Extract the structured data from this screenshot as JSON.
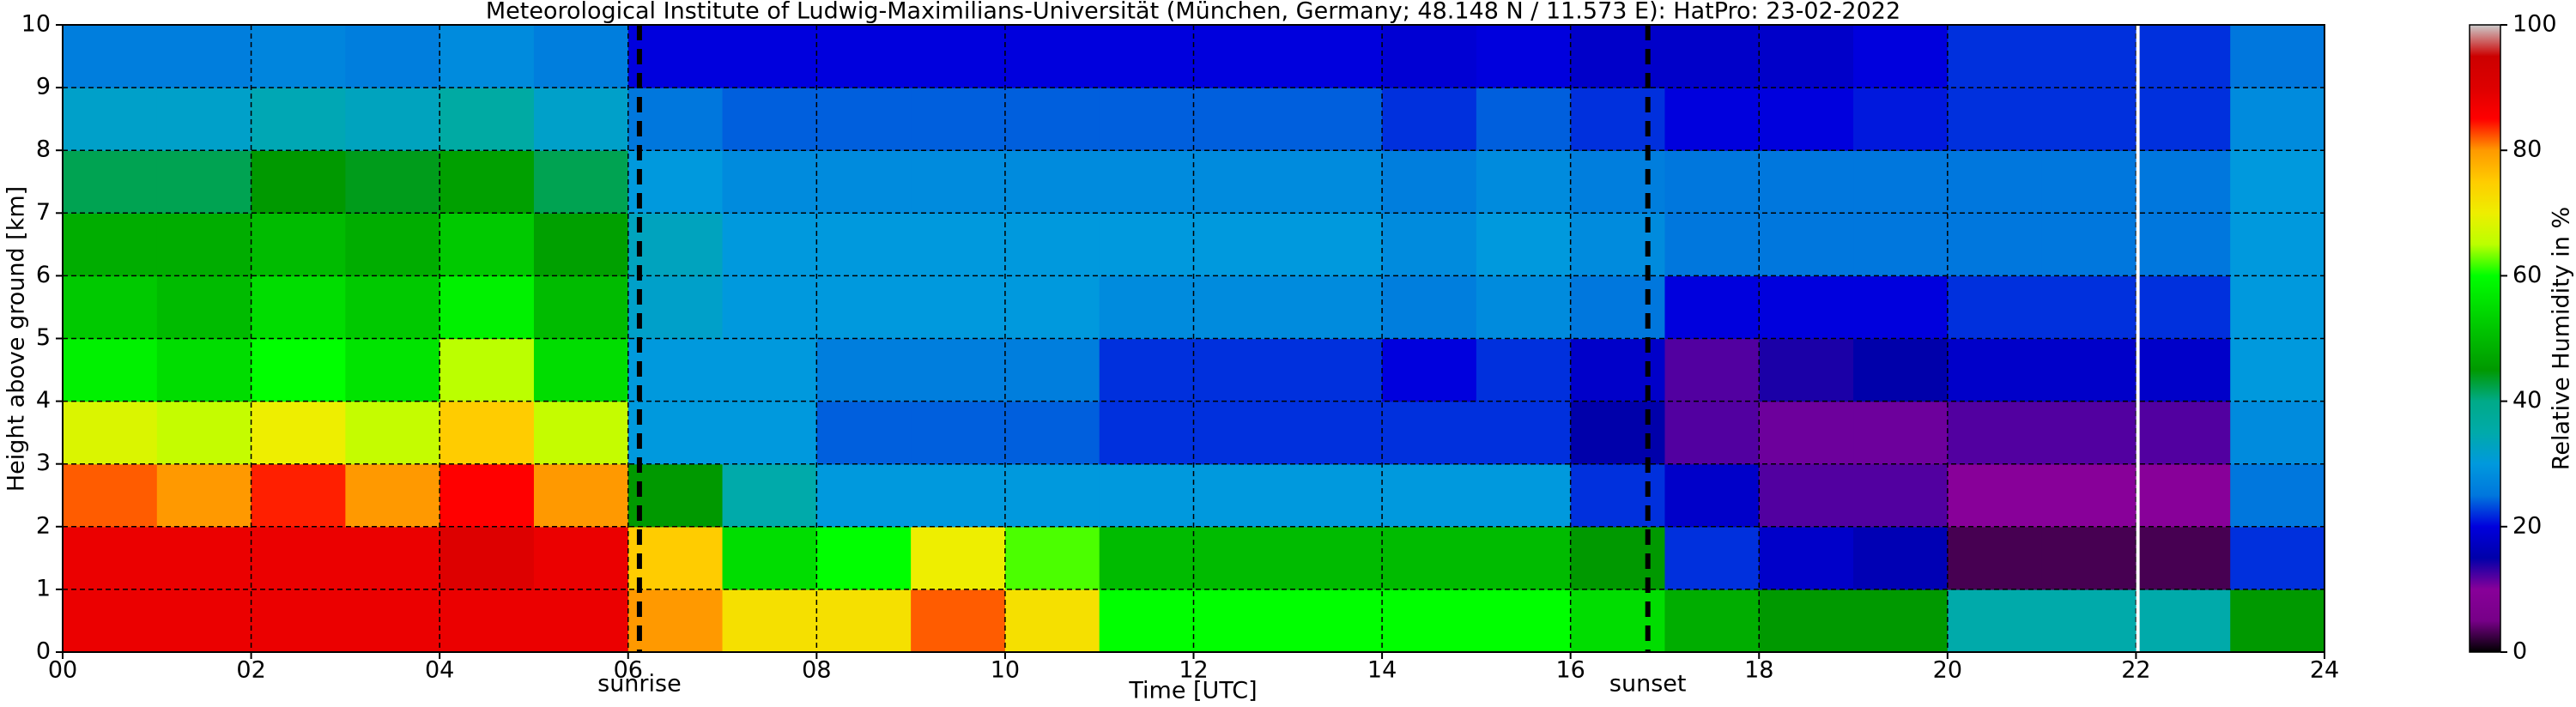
{
  "chart_data": {
    "type": "heatmap",
    "title": "Meteorological Institute of Ludwig-Maximilians-Universität (München, Germany; 48.148 N / 11.573 E):    HatPro: 23-02-2022",
    "x_label": "Time [UTC]",
    "y_label": "Height above ground [km]",
    "xlim": [
      0,
      24
    ],
    "ylim": [
      0,
      10
    ],
    "xticks": [
      {
        "value": 0,
        "label": "00"
      },
      {
        "value": 2,
        "label": "02"
      },
      {
        "value": 4,
        "label": "04"
      },
      {
        "value": 6,
        "label": "06"
      },
      {
        "value": 8,
        "label": "08"
      },
      {
        "value": 10,
        "label": "10"
      },
      {
        "value": 12,
        "label": "12"
      },
      {
        "value": 14,
        "label": "14"
      },
      {
        "value": 16,
        "label": "16"
      },
      {
        "value": 18,
        "label": "18"
      },
      {
        "value": 20,
        "label": "20"
      },
      {
        "value": 22,
        "label": "22"
      },
      {
        "value": 24,
        "label": "24"
      }
    ],
    "yticks": [
      0,
      1,
      2,
      3,
      4,
      5,
      6,
      7,
      8,
      9,
      10
    ],
    "grid": true,
    "x": [
      0.5,
      1.5,
      2.5,
      3.5,
      4.5,
      5.5,
      6.5,
      7.5,
      8.5,
      9.5,
      10.5,
      11.5,
      12.5,
      13.5,
      14.5,
      15.5,
      16.5,
      17.5,
      18.5,
      19.5,
      20.5,
      21.5,
      22.5,
      23.5
    ],
    "y": [
      0.5,
      1.5,
      2.5,
      3.5,
      4.5,
      5.5,
      6.5,
      7.5,
      8.5,
      9.5
    ],
    "values": [
      [
        88,
        88,
        88,
        88,
        88,
        88,
        80,
        72,
        72,
        82,
        72,
        60,
        60,
        60,
        60,
        60,
        55,
        48,
        45,
        45,
        35,
        35,
        35,
        45
      ],
      [
        88,
        88,
        88,
        88,
        90,
        88,
        75,
        55,
        60,
        70,
        62,
        50,
        50,
        50,
        50,
        50,
        45,
        22,
        18,
        16,
        3,
        3,
        3,
        22
      ],
      [
        82,
        80,
        84,
        80,
        85,
        80,
        45,
        35,
        30,
        30,
        30,
        30,
        30,
        30,
        30,
        30,
        22,
        18,
        12,
        12,
        10,
        10,
        10,
        25
      ],
      [
        68,
        66,
        70,
        66,
        75,
        66,
        30,
        30,
        24,
        24,
        24,
        22,
        22,
        22,
        22,
        22,
        15,
        12,
        11,
        11,
        12,
        12,
        12,
        28
      ],
      [
        58,
        55,
        60,
        56,
        65,
        55,
        30,
        30,
        26,
        26,
        26,
        22,
        22,
        22,
        20,
        22,
        18,
        12,
        14,
        15,
        18,
        18,
        18,
        30
      ],
      [
        52,
        50,
        55,
        52,
        58,
        50,
        32,
        30,
        30,
        30,
        30,
        28,
        28,
        28,
        26,
        28,
        25,
        20,
        20,
        20,
        22,
        22,
        22,
        30
      ],
      [
        48,
        48,
        50,
        48,
        52,
        46,
        33,
        30,
        30,
        30,
        30,
        30,
        30,
        30,
        28,
        30,
        28,
        25,
        25,
        25,
        25,
        25,
        25,
        30
      ],
      [
        42,
        42,
        45,
        44,
        46,
        42,
        30,
        28,
        28,
        28,
        28,
        28,
        28,
        28,
        26,
        28,
        26,
        25,
        25,
        25,
        25,
        25,
        25,
        30
      ],
      [
        32,
        32,
        34,
        33,
        36,
        32,
        25,
        24,
        24,
        24,
        24,
        24,
        24,
        24,
        22,
        24,
        22,
        20,
        20,
        21,
        22,
        22,
        22,
        28
      ],
      [
        26,
        26,
        27,
        26,
        28,
        26,
        20,
        20,
        20,
        20,
        20,
        20,
        20,
        20,
        19,
        20,
        18,
        18,
        18,
        20,
        22,
        22,
        22,
        25
      ]
    ],
    "colormap": [
      "#000000",
      "#770088",
      "#880099",
      "#0000aa",
      "#0000dd",
      "#0077dd",
      "#0099dd",
      "#00aaaa",
      "#00aa88",
      "#009900",
      "#00bb00",
      "#00dd00",
      "#00ff00",
      "#bbff00",
      "#eeee00",
      "#ffcc00",
      "#ff9900",
      "#ff0000",
      "#dd0000",
      "#cc0000",
      "#cccccc"
    ],
    "colorbar": {
      "label": "Relative Humidity in %",
      "lim": [
        0,
        100
      ],
      "ticks": [
        0,
        20,
        40,
        60,
        80,
        100
      ]
    },
    "annotations": [
      {
        "text": "sunrise",
        "x": 6.12
      },
      {
        "text": "sunset",
        "x": 16.82
      }
    ],
    "vlines": [
      {
        "x": 22.02,
        "color": "#ffffff"
      }
    ]
  }
}
